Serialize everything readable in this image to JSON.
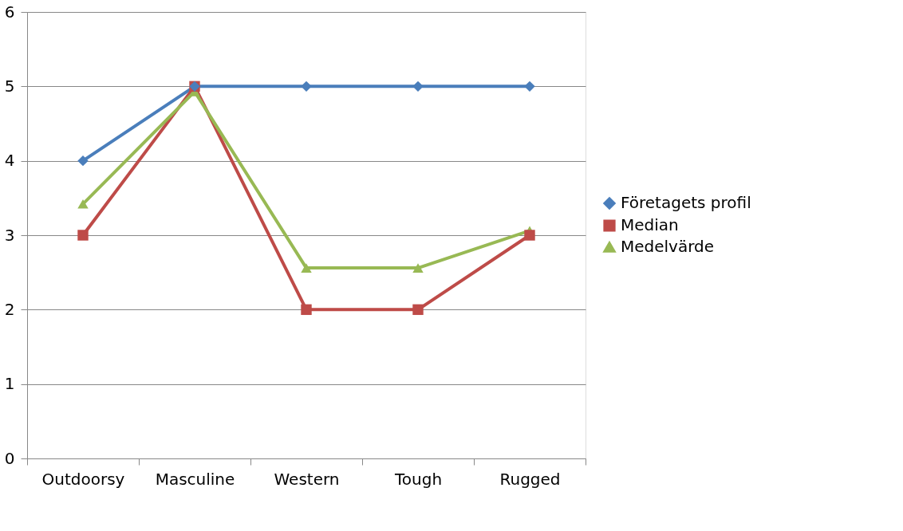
{
  "chart_data": {
    "type": "line",
    "categories": [
      "Outdoorsy",
      "Masculine",
      "Western",
      "Tough",
      "Rugged"
    ],
    "series": [
      {
        "name": "Företagets profil",
        "color": "#4a7ebb",
        "marker": "diamond",
        "values": [
          4,
          5,
          5,
          5,
          5
        ]
      },
      {
        "name": "Median",
        "color": "#be4b48",
        "marker": "square",
        "values": [
          3,
          5,
          2,
          2,
          3
        ]
      },
      {
        "name": "Medelvärde",
        "color": "#98b954",
        "marker": "triangle",
        "values": [
          3.42,
          4.93,
          2.56,
          2.56,
          3.06
        ]
      }
    ],
    "ylim": [
      0,
      6
    ],
    "yticks": [
      0,
      1,
      2,
      3,
      4,
      5,
      6
    ],
    "grid": "y",
    "legend": "right",
    "line_style": "solid"
  }
}
